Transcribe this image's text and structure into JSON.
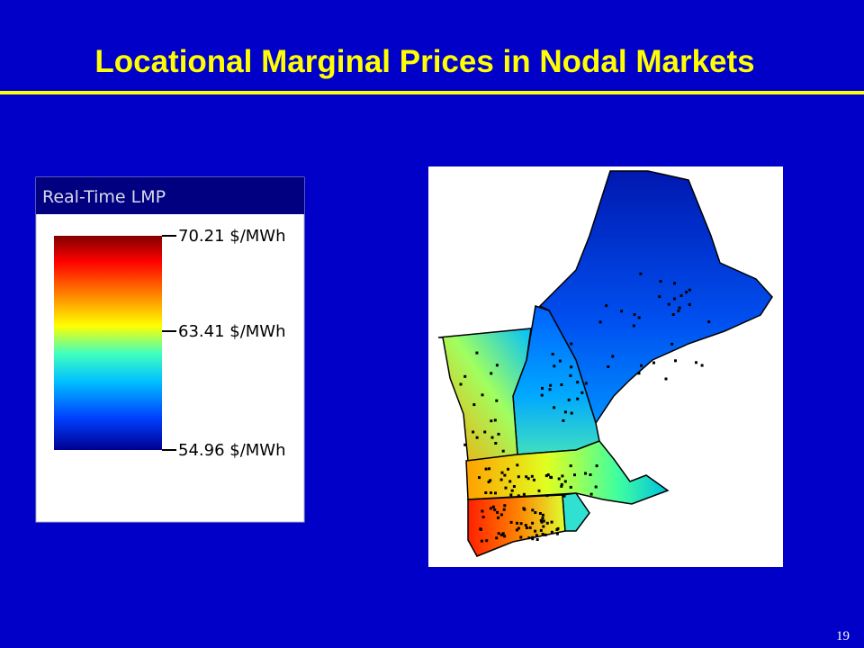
{
  "header": {
    "title": "Locational Marginal Prices in Nodal Markets"
  },
  "legend": {
    "title": "Real-Time LMP",
    "ticks": [
      "70.21 $/MWh",
      "63.41 $/MWh",
      "54.96 $/MWh"
    ]
  },
  "footer": {
    "page_number": "19"
  }
}
